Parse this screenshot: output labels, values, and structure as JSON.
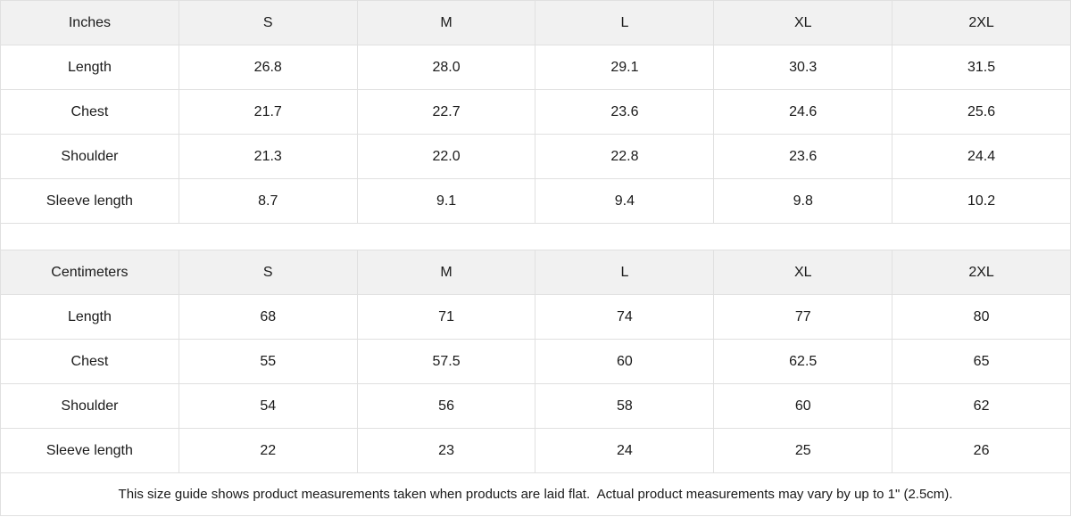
{
  "colors": {
    "header_bg": "#f1f1f1",
    "border": "#e0e0e0",
    "text": "#1a1a1a",
    "cell_bg": "#ffffff"
  },
  "size_guide": {
    "tables": [
      {
        "unit_label": "Inches",
        "sizes": [
          "S",
          "M",
          "L",
          "XL",
          "2XL"
        ],
        "rows": [
          {
            "label": "Length",
            "values": [
              "26.8",
              "28.0",
              "29.1",
              "30.3",
              "31.5"
            ]
          },
          {
            "label": "Chest",
            "values": [
              "21.7",
              "22.7",
              "23.6",
              "24.6",
              "25.6"
            ]
          },
          {
            "label": "Shoulder",
            "values": [
              "21.3",
              "22.0",
              "22.8",
              "23.6",
              "24.4"
            ]
          },
          {
            "label": "Sleeve length",
            "values": [
              "8.7",
              "9.1",
              "9.4",
              "9.8",
              "10.2"
            ]
          }
        ]
      },
      {
        "unit_label": "Centimeters",
        "sizes": [
          "S",
          "M",
          "L",
          "XL",
          "2XL"
        ],
        "rows": [
          {
            "label": "Length",
            "values": [
              "68",
              "71",
              "74",
              "77",
              "80"
            ]
          },
          {
            "label": "Chest",
            "values": [
              "55",
              "57.5",
              "60",
              "62.5",
              "65"
            ]
          },
          {
            "label": "Shoulder",
            "values": [
              "54",
              "56",
              "58",
              "60",
              "62"
            ]
          },
          {
            "label": "Sleeve length",
            "values": [
              "22",
              "23",
              "24",
              "25",
              "26"
            ]
          }
        ]
      }
    ],
    "footnote": "This size guide shows product measurements taken when products are laid flat.  Actual product measurements may vary by up to 1\" (2.5cm)."
  }
}
